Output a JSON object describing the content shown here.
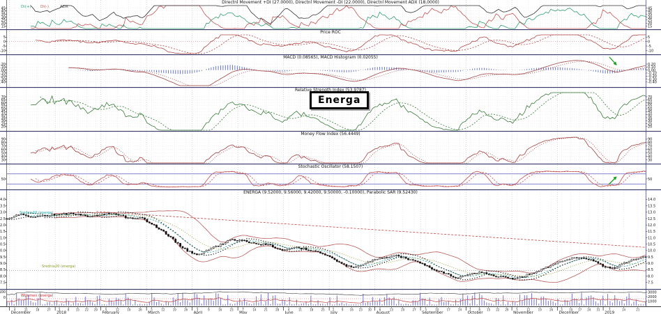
{
  "labels": {
    "symbol_box": "Energa",
    "ma10": "Srednia10 (energa)",
    "ma20": "Srednia20 (energa)",
    "volume": "Wolumen (energa)"
  },
  "legend": [
    {
      "label": "Di(+)",
      "color": "#2f9e6e"
    },
    {
      "label": "Di(-)",
      "color": "#c05555"
    },
    {
      "label": "ADX",
      "color": "#333333"
    }
  ],
  "x_axis": {
    "months": [
      {
        "label": "December",
        "t": 0.004,
        "days": [
          "4",
          "11",
          "18",
          "27"
        ]
      },
      {
        "label": "2018",
        "t": 0.0755,
        "days": [
          "3",
          "8",
          "15",
          "22",
          "29"
        ]
      },
      {
        "label": "February",
        "t": 0.147,
        "days": [
          "5",
          "12",
          "19",
          "26"
        ]
      },
      {
        "label": "March",
        "t": 0.2185,
        "days": [
          "5",
          "12",
          "19",
          "26"
        ]
      },
      {
        "label": "April",
        "t": 0.29,
        "days": [
          "3",
          "9",
          "16",
          "23"
        ]
      },
      {
        "label": "May",
        "t": 0.3615,
        "days": [
          "7",
          "14",
          "21",
          "28"
        ]
      },
      {
        "label": "June",
        "t": 0.433,
        "days": [
          "4",
          "11",
          "18",
          "25"
        ]
      },
      {
        "label": "July",
        "t": 0.5045,
        "days": [
          "2",
          "9",
          "16",
          "23",
          "30"
        ]
      },
      {
        "label": "August",
        "t": 0.576,
        "days": [
          "6",
          "13",
          "20",
          "27"
        ]
      },
      {
        "label": "September",
        "t": 0.6475,
        "days": [
          "3",
          "10",
          "17",
          "24"
        ]
      },
      {
        "label": "October",
        "t": 0.719,
        "days": [
          "1",
          "8",
          "15",
          "22",
          "29"
        ]
      },
      {
        "label": "November",
        "t": 0.7905,
        "days": [
          "5",
          "12",
          "19",
          "26"
        ]
      },
      {
        "label": "December",
        "t": 0.862,
        "days": [
          "3",
          "10",
          "17",
          "24",
          "31"
        ]
      },
      {
        "label": "2019",
        "t": 0.9335,
        "days": [
          "7",
          "14",
          "21"
        ]
      }
    ]
  },
  "chart_data": [
    {
      "name": "dmi",
      "type": "line",
      "title": "Directnl Movement +DI (27.0000), Directnl Movement -DI (22.0000), Directnl Movement ADX (18.0000)",
      "ylim": [
        11,
        49
      ],
      "yticks": [
        45,
        40,
        35,
        30,
        25,
        20,
        15
      ],
      "colors": {
        "plus_di": "#2f9e6e",
        "minus_di": "#c05555",
        "adx": "#333333"
      },
      "last_values": {
        "plus_di": 27.0,
        "minus_di": 22.0,
        "adx": 18.0
      },
      "derived": "computed from price series (period 14)"
    },
    {
      "name": "roc",
      "type": "line",
      "title": "Price ROC",
      "ylim": [
        -13.5,
        7.5
      ],
      "yticks": [
        5,
        0,
        -5,
        -10
      ],
      "period": 12,
      "colors": {
        "roc": "#b04848"
      }
    },
    {
      "name": "macd",
      "type": "line+histogram",
      "title": "MACD (0.08565), MACD Histogram (0.02055)",
      "ylim": [
        -0.52,
        0.34
      ],
      "yticks": [
        0.2,
        0.1,
        0.0,
        -0.1,
        -0.2,
        -0.3,
        -0.4
      ],
      "colors": {
        "macd": "#a04848",
        "signal": "#a04848",
        "histogram": "#5a6ab8"
      },
      "last_values": {
        "macd": 0.08565,
        "histogram": 0.02055
      }
    },
    {
      "name": "rsi",
      "type": "line",
      "title": "Relative Strength Index (53.9787)",
      "ylim": [
        14,
        77
      ],
      "yticks": [
        70,
        65,
        60,
        55,
        50,
        45,
        40,
        35,
        30,
        25,
        20
      ],
      "colors": {
        "rsi": "#3a7a3a"
      },
      "last_values": {
        "rsi": 53.9787
      }
    },
    {
      "name": "mfi",
      "type": "line",
      "title": "Money Flow Index (56.4449)",
      "ylim": [
        21,
        98
      ],
      "yticks": [
        90,
        80,
        70,
        60,
        50,
        40,
        30
      ],
      "colors": {
        "mfi": "#a04040"
      },
      "last_values": {
        "mfi": 56.4449
      }
    },
    {
      "name": "stoch",
      "type": "line",
      "title": "Stochastic Oscillator (58.1507)",
      "ylim": [
        -8,
        108
      ],
      "yticks": [
        50
      ],
      "ref_lines": [
        80,
        20
      ],
      "colors": {
        "k": "#c05050",
        "d": "#c05050",
        "ref": "#5a5ac0"
      },
      "last_values": {
        "stoch": 58.1507
      }
    },
    {
      "name": "price",
      "type": "candlestick",
      "title": "ENERGA (9.52000, 9.56000, 9.42000, 9.50000, -0.10000), Parabolic SAR (9.52430)",
      "ylim": [
        7.05,
        14.35
      ],
      "yticks": [
        14.0,
        13.5,
        13.0,
        12.5,
        12.0,
        11.5,
        11.0,
        10.5,
        10.0,
        9.5,
        9.0,
        8.5,
        8.0,
        7.5
      ],
      "last_ohlc": {
        "open": 9.52,
        "high": 9.56,
        "low": 9.42,
        "close": 9.5,
        "change": -0.1
      },
      "parabolic_sar": 9.5243,
      "overlays": [
        "Bollinger Bands",
        "MA10",
        "MA20",
        "Parabolic SAR",
        "downtrend line",
        "support line"
      ],
      "trendline": {
        "t0": 0.14,
        "p0": 13.05,
        "t1": 1.0,
        "p1": 10.25
      },
      "support_level": 8.43,
      "colors": {
        "candle": "#111111",
        "bollinger": "#b85c5c",
        "ma10": "#1f9e9e",
        "ma20": "#8a9a2a",
        "sar": "#222222",
        "trend": "#c04848",
        "support": "#777777"
      },
      "price_anchors": [
        [
          0,
          12.4
        ],
        [
          0.02,
          12.85
        ],
        [
          0.045,
          12.6
        ],
        [
          0.07,
          12.8
        ],
        [
          0.1,
          12.9
        ],
        [
          0.13,
          12.65
        ],
        [
          0.15,
          12.85
        ],
        [
          0.17,
          12.9
        ],
        [
          0.19,
          12.5
        ],
        [
          0.21,
          12.55
        ],
        [
          0.23,
          12.0
        ],
        [
          0.25,
          11.3
        ],
        [
          0.27,
          10.4
        ],
        [
          0.285,
          9.9
        ],
        [
          0.3,
          9.65
        ],
        [
          0.315,
          10.1
        ],
        [
          0.33,
          10.35
        ],
        [
          0.35,
          10.9
        ],
        [
          0.37,
          10.75
        ],
        [
          0.39,
          10.5
        ],
        [
          0.41,
          10.45
        ],
        [
          0.43,
          10.0
        ],
        [
          0.45,
          10.25
        ],
        [
          0.47,
          10.1
        ],
        [
          0.49,
          9.85
        ],
        [
          0.51,
          9.4
        ],
        [
          0.525,
          8.95
        ],
        [
          0.54,
          8.65
        ],
        [
          0.555,
          8.9
        ],
        [
          0.57,
          9.2
        ],
        [
          0.59,
          9.45
        ],
        [
          0.61,
          9.6
        ],
        [
          0.63,
          9.3
        ],
        [
          0.65,
          8.95
        ],
        [
          0.67,
          8.45
        ],
        [
          0.69,
          8.15
        ],
        [
          0.705,
          7.85
        ],
        [
          0.72,
          8.1
        ],
        [
          0.74,
          8.3
        ],
        [
          0.76,
          8.05
        ],
        [
          0.78,
          7.95
        ],
        [
          0.795,
          7.75
        ],
        [
          0.815,
          8.1
        ],
        [
          0.835,
          8.45
        ],
        [
          0.855,
          8.9
        ],
        [
          0.875,
          9.3
        ],
        [
          0.895,
          9.5
        ],
        [
          0.915,
          9.25
        ],
        [
          0.935,
          8.75
        ],
        [
          0.95,
          8.6
        ],
        [
          0.965,
          9.0
        ],
        [
          0.98,
          9.3
        ],
        [
          1,
          9.5
        ]
      ]
    },
    {
      "name": "volume",
      "type": "bar",
      "ylim": [
        0,
        3400
      ],
      "yticks_right": [
        3000,
        2000,
        1000
      ],
      "yticks_left": [
        100,
        0
      ],
      "colors": {
        "bars": "#8080cc",
        "line": "#c04040",
        "upper_line": "#333333"
      }
    }
  ]
}
